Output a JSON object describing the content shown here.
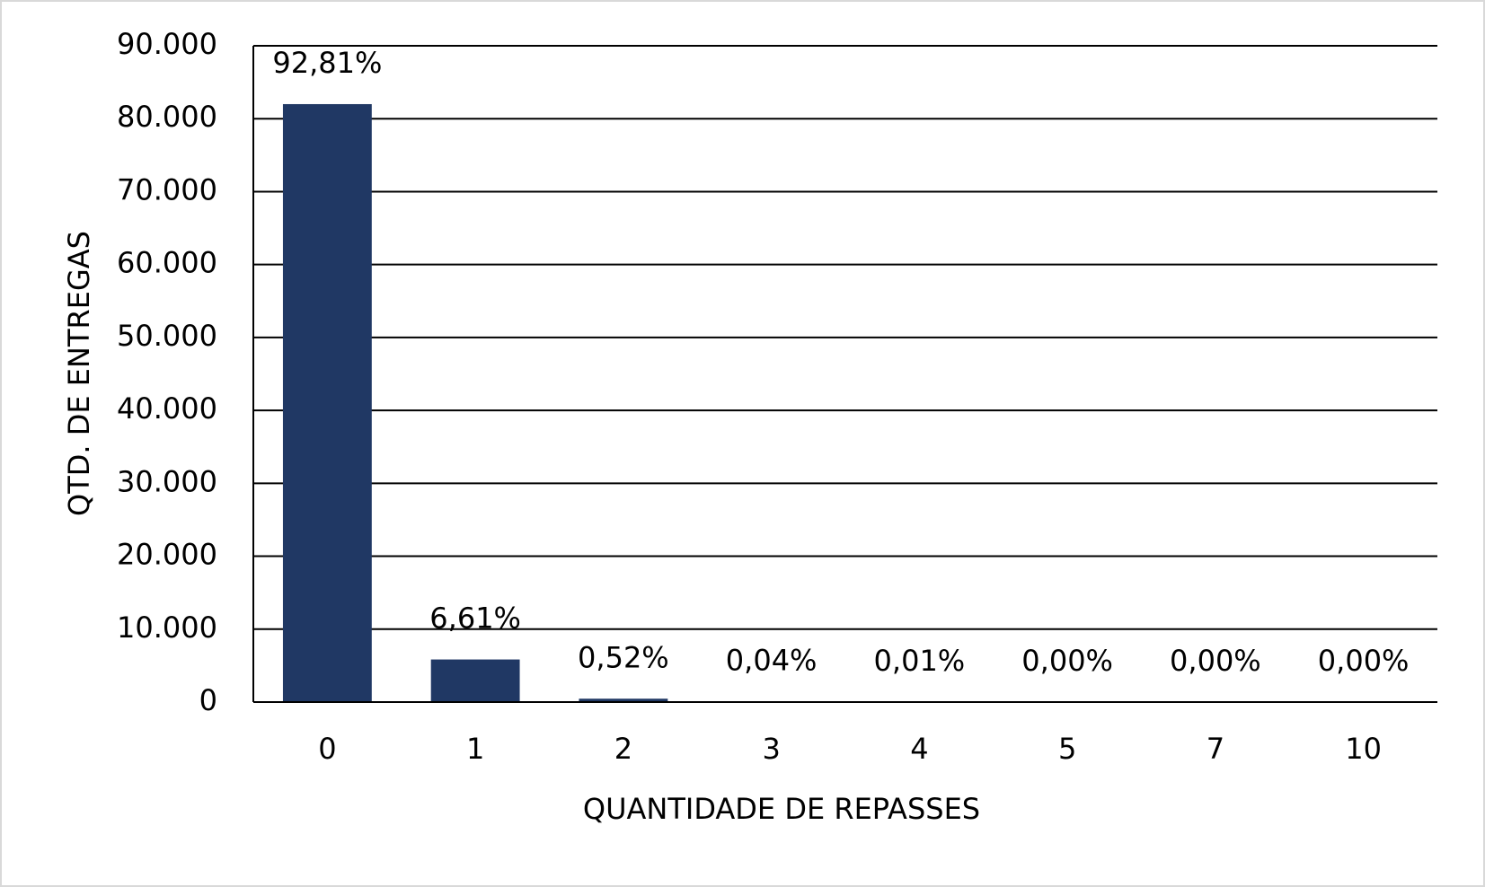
{
  "chart_data": {
    "type": "bar",
    "x_label": "QUANTIDADE DE REPASSES",
    "y_label": "QTD. DE ENTREGAS",
    "categories": [
      "0",
      "1",
      "2",
      "3",
      "4",
      "5",
      "7",
      "10"
    ],
    "values": [
      82000,
      5840,
      460,
      35,
      9,
      2,
      1,
      1
    ],
    "value_labels": [
      "92,81%",
      "6,61%",
      "0,52%",
      "0,04%",
      "0,01%",
      "0,00%",
      "0,00%",
      "0,00%"
    ],
    "color": "#203864",
    "ylim": [
      0,
      90000
    ],
    "yticks": [
      0,
      {
        "value": 10000,
        "label": "10.000"
      },
      {
        "value": 20000,
        "label": "20.000"
      },
      {
        "value": 30000,
        "label": "30.000"
      },
      {
        "value": 40000,
        "label": "40.000"
      },
      {
        "value": 50000,
        "label": "50.000"
      },
      {
        "value": 60000,
        "label": "60.000"
      },
      {
        "value": 70000,
        "label": "70.000"
      },
      {
        "value": 80000,
        "label": "80.000"
      },
      {
        "value": 90000,
        "label": "90.000"
      }
    ],
    "grid": true
  }
}
